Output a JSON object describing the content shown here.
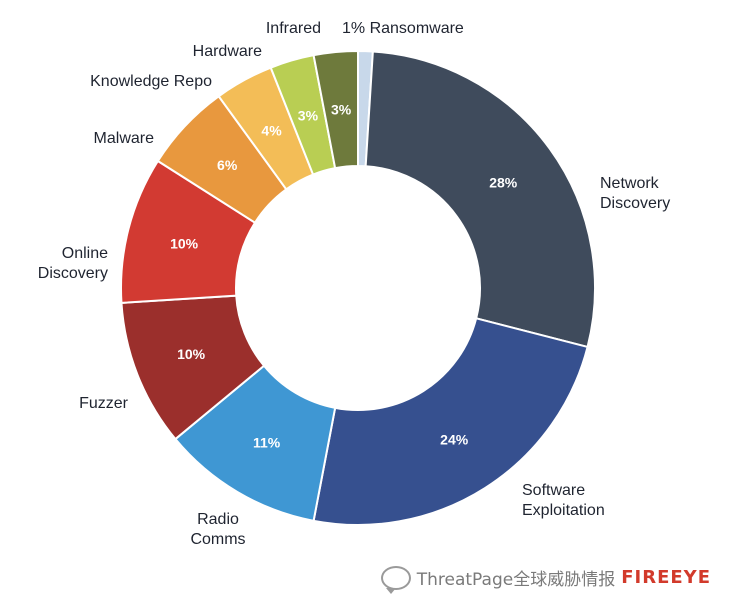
{
  "chart_data": {
    "type": "pie",
    "donut": true,
    "title": "",
    "slices": [
      {
        "label": "Ransomware",
        "value": 1,
        "pct_label": "",
        "outer_label": "1%  Ransomware",
        "color": "#c8d8ea"
      },
      {
        "label": "Network Discovery",
        "value": 28,
        "pct_label": "28%",
        "outer_label": "Network\nDiscovery",
        "color": "#3f4b5c"
      },
      {
        "label": "Software Exploitation",
        "value": 24,
        "pct_label": "24%",
        "outer_label": "Software\nExploitation",
        "color": "#36508f"
      },
      {
        "label": "Radio Comms",
        "value": 11,
        "pct_label": "11%",
        "outer_label": "Radio\nComms",
        "color": "#3f97d3"
      },
      {
        "label": "Fuzzer",
        "value": 10,
        "pct_label": "10%",
        "outer_label": "Fuzzer",
        "color": "#9b2f2c"
      },
      {
        "label": "Online Discovery",
        "value": 10,
        "pct_label": "10%",
        "outer_label": "Online\nDiscovery",
        "color": "#d23a32"
      },
      {
        "label": "Malware",
        "value": 6,
        "pct_label": "6%",
        "outer_label": "Malware",
        "color": "#e8983e"
      },
      {
        "label": "Knowledge Repo",
        "value": 4,
        "pct_label": "4%",
        "outer_label": "Knowledge Repo",
        "color": "#f3bd57"
      },
      {
        "label": "Hardware",
        "value": 3,
        "pct_label": "3%",
        "outer_label": "Hardware",
        "color": "#b9ce53"
      },
      {
        "label": "Infrared",
        "value": 3,
        "pct_label": "3%",
        "outer_label": "Infrared",
        "color": "#6e7a3c"
      }
    ]
  },
  "watermark": {
    "text": "ThreatPage全球威胁情报",
    "brand": "FIREEYE",
    "icon": "chat-bubble-icon"
  }
}
